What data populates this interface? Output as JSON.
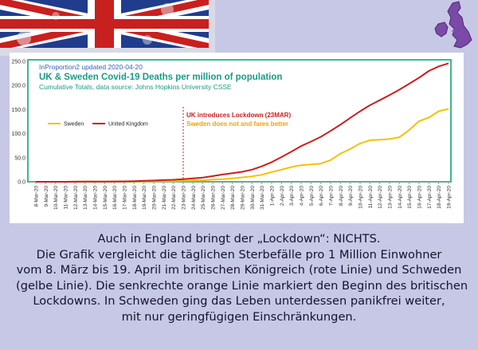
{
  "header": {
    "line1": "InProportion2 updated 2020-04-20",
    "title": "UK & Sweden Covid-19 Deaths per million of population",
    "subtitle": "Cumulative Totals, data source: Johns Hopkins University CSSE"
  },
  "colors": {
    "uk": "#c8201e",
    "sweden": "#f2c200",
    "header_blue": "#3860b8",
    "title_teal": "#1a9b84",
    "frame_green": "#3cb890",
    "annotation_red": "#c8201e",
    "annotation_orange": "#f2a300",
    "background": "#c7c8e6"
  },
  "chart_data": {
    "type": "line",
    "x": [
      "8-Mar-20",
      "9-Mar-20",
      "10-Mar-20",
      "11-Mar-20",
      "12-Mar-20",
      "13-Mar-20",
      "14-Mar-20",
      "15-Mar-20",
      "16-Mar-20",
      "17-Mar-20",
      "18-Mar-20",
      "19-Mar-20",
      "20-Mar-20",
      "21-Mar-20",
      "22-Mar-20",
      "23-Mar-20",
      "24-Mar-20",
      "25-Mar-20",
      "26-Mar-20",
      "27-Mar-20",
      "28-Mar-20",
      "29-Mar-20",
      "30-Mar-20",
      "31-Mar-20",
      "1-Apr-20",
      "2-Apr-20",
      "3-Apr-20",
      "4-Apr-20",
      "5-Apr-20",
      "6-Apr-20",
      "7-Apr-20",
      "8-Apr-20",
      "9-Apr-20",
      "10-Apr-20",
      "11-Apr-20",
      "12-Apr-20",
      "13-Apr-20",
      "14-Apr-20",
      "15-Apr-20",
      "16-Apr-20",
      "17-Apr-20",
      "18-Apr-20",
      "19-Apr-20"
    ],
    "series": [
      {
        "name": "Sweden",
        "values": [
          0,
          0,
          0,
          0,
          0.1,
          0.1,
          0.1,
          0.2,
          0.3,
          0.4,
          0.6,
          0.7,
          1.0,
          1.1,
          1.4,
          2.1,
          2.7,
          3.2,
          4.4,
          5.3,
          7.2,
          9.1,
          11.2,
          14.6,
          20.0,
          25.2,
          30.6,
          34.4,
          35.9,
          37.7,
          45.0,
          58.4,
          68.1,
          79.7,
          86.2,
          87.5,
          88.7,
          92.5,
          107.6,
          125.9,
          133.2,
          146.6,
          151.4
        ]
      },
      {
        "name": "United Kingdom",
        "values": [
          0,
          0,
          0,
          0,
          0.2,
          0.3,
          0.4,
          0.4,
          0.7,
          0.9,
          1.4,
          2.0,
          2.7,
          3.5,
          4.2,
          5.4,
          7.0,
          8.6,
          11.7,
          15.1,
          17.7,
          20.7,
          25.2,
          32.2,
          40.8,
          51.4,
          62.6,
          74.1,
          83.4,
          93.3,
          105.7,
          118.6,
          132.8,
          146.3,
          159.0,
          169.4,
          180.1,
          191.2,
          203.6,
          216.0,
          230.2,
          239.6,
          246.0
        ]
      }
    ],
    "ylim": [
      0,
      250
    ],
    "yticks": [
      "0.0",
      "50.0",
      "100.0",
      "150.0",
      "200.0",
      "250.0"
    ],
    "grid": false,
    "legend_placement": "top-left",
    "annotations": [
      {
        "text": "UK introduces Lockdown (23MAR)",
        "x": "23-Mar-20"
      },
      {
        "text": "Sweden does not and fares better",
        "x": "23-Mar-20"
      }
    ]
  },
  "caption": {
    "lines": [
      "Auch in England bringt der „Lockdown“: NICHTS.",
      "Die Grafik vergleicht die täglichen Sterbefälle pro 1 Million Einwohner",
      "vom 8. März bis 19. April im britischen Königreich (rote Linie) und Schweden",
      "(gelbe Linie). Die senkrechte orange Linie markiert den Beginn des britischen",
      "Lockdowns. In Schweden ging das Leben unterdessen panikfrei weiter,",
      "mit nur geringfügigen Einschränkungen."
    ]
  }
}
